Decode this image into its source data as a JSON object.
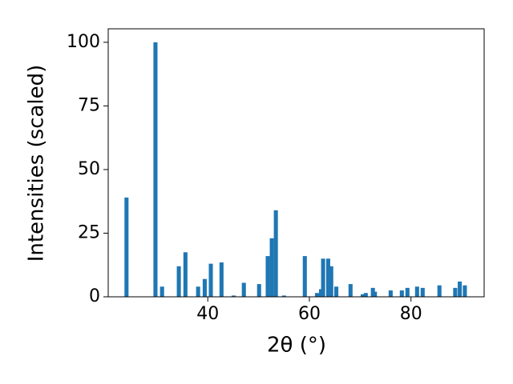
{
  "chart_data": {
    "type": "bar",
    "xlabel": "2θ (°)",
    "ylabel": "Intensities (scaled)",
    "x": [
      24.0,
      29.7,
      31.0,
      34.3,
      35.6,
      38.1,
      39.4,
      40.6,
      42.7,
      45.1,
      47.1,
      50.1,
      51.8,
      52.6,
      53.4,
      55.0,
      59.1,
      61.5,
      62.3,
      62.7,
      63.7,
      64.3,
      65.3,
      68.1,
      70.5,
      71.1,
      72.5,
      72.9,
      76.0,
      78.2,
      79.3,
      81.2,
      82.3,
      85.6,
      88.7,
      89.6,
      90.6
    ],
    "values": [
      39,
      100,
      4,
      12,
      17.5,
      4,
      7,
      13,
      13.5,
      0.5,
      5.5,
      5,
      16,
      23,
      34,
      0.5,
      16,
      1.5,
      3,
      15,
      15,
      12,
      4,
      5,
      1,
      1.5,
      3.5,
      2,
      2.5,
      2.5,
      3.5,
      4,
      3.5,
      4.5,
      3.5,
      6,
      4.5
    ],
    "color": "#1f77b4",
    "bar_width": 0.8,
    "xlim": [
      20.4,
      94.4
    ],
    "ylim": [
      0,
      105.3
    ],
    "xticks": [
      40,
      60,
      80
    ],
    "yticks": [
      0,
      25,
      50,
      75,
      100
    ],
    "grid": false
  }
}
